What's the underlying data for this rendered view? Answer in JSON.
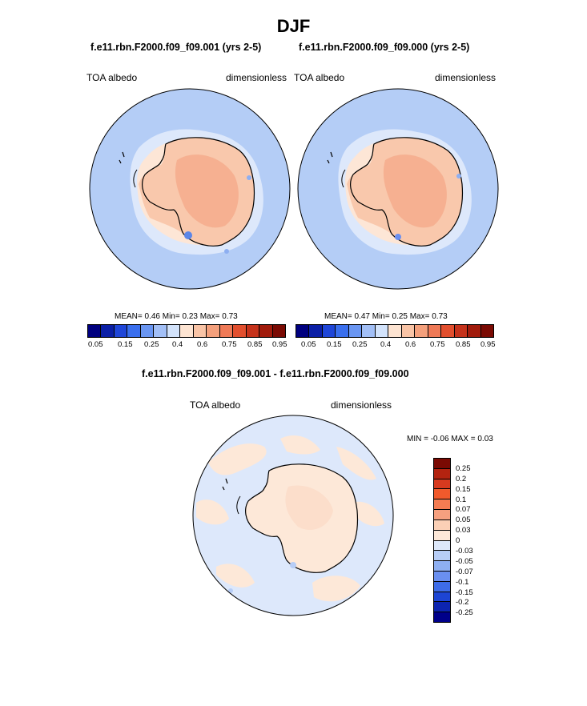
{
  "figure": {
    "title": "DJF"
  },
  "panel_left": {
    "title": "f.e11.rbn.F2000.f09_f09.001 (yrs 2-5)",
    "variable": "TOA albedo",
    "units": "dimensionless",
    "stats": "MEAN=   0.46  Min=   0.23  Max=   0.73"
  },
  "panel_right": {
    "title": "f.e11.rbn.F2000.f09_f09.000 (yrs 2-5)",
    "variable": "TOA albedo",
    "units": "dimensionless",
    "stats": "MEAN=   0.47  Min=   0.25  Max=   0.73"
  },
  "panel_diff": {
    "title": "f.e11.rbn.F2000.f09_f09.001 - f.e11.rbn.F2000.f09_f09.000",
    "variable": "TOA albedo",
    "units": "dimensionless",
    "stats": "MIN =  -0.06 MAX =   0.03"
  },
  "colorbar_abs": {
    "colors": [
      "#00007f",
      "#0b1fa6",
      "#1f46d8",
      "#3a6fee",
      "#6a96f2",
      "#a2bff6",
      "#d3e3fb",
      "#fde4d2",
      "#f9c4a6",
      "#f4a07c",
      "#ef7a57",
      "#e24f2e",
      "#c5321b",
      "#a11b0c",
      "#7a0a03"
    ],
    "ticks": [
      "0.05",
      "0.15",
      "0.25",
      "0.4",
      "0.6",
      "0.75",
      "0.85",
      "0.95"
    ]
  },
  "colorbar_diff": {
    "colors": [
      "#7a0a03",
      "#b32310",
      "#d73a1f",
      "#f15a2c",
      "#f47c52",
      "#f6a07f",
      "#fbd0b6",
      "#fde8d8",
      "#dde8fa",
      "#b7cdf6",
      "#8eaff1",
      "#6a8ff0",
      "#3e6ce8",
      "#1d45d4",
      "#0c24b0",
      "#00008a"
    ],
    "ticks": [
      "0.25",
      "0.2",
      "0.15",
      "0.1",
      "0.07",
      "0.05",
      "0.03",
      "0",
      "-0.03",
      "-0.05",
      "-0.07",
      "-0.1",
      "-0.15",
      "-0.2",
      "-0.25"
    ]
  }
}
